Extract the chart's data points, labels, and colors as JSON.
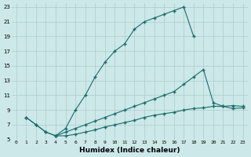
{
  "xlabel": "Humidex (Indice chaleur)",
  "bg_color": "#cce8e8",
  "grid_color": "#aacccc",
  "line_color": "#1a6b6b",
  "xlim": [
    -0.5,
    23.5
  ],
  "ylim": [
    5,
    23.5
  ],
  "yticks": [
    5,
    7,
    9,
    11,
    13,
    15,
    17,
    19,
    21,
    23
  ],
  "xticks": [
    0,
    1,
    2,
    3,
    4,
    5,
    6,
    7,
    8,
    9,
    10,
    11,
    12,
    13,
    14,
    15,
    16,
    17,
    18,
    19,
    20,
    21,
    22,
    23
  ],
  "line1_x": [
    1,
    2,
    3,
    4,
    5,
    6,
    7,
    8,
    9,
    10,
    11,
    12,
    13,
    14,
    15,
    16,
    17,
    18
  ],
  "line1_y": [
    8,
    7,
    6,
    5.5,
    6.5,
    9,
    11,
    13.5,
    15.5,
    17,
    18,
    20,
    21,
    21.5,
    22,
    22.5,
    23,
    19
  ],
  "line2_x": [
    1,
    2,
    3,
    4,
    5,
    6,
    7,
    8,
    9,
    10,
    11,
    12,
    13,
    14,
    15,
    16,
    17,
    18,
    19,
    20,
    21,
    22,
    23
  ],
  "line2_y": [
    8,
    7,
    6,
    5.5,
    5.5,
    5.7,
    6,
    6.3,
    6.7,
    7,
    7.3,
    7.6,
    8,
    8.3,
    8.5,
    8.7,
    9,
    9.2,
    9.3,
    9.5,
    9.5,
    9.6,
    9.5
  ],
  "line3_x": [
    4,
    5,
    6,
    7,
    8,
    9,
    10,
    11,
    12,
    13,
    14,
    15,
    16,
    17,
    18,
    19,
    20,
    21,
    22,
    23
  ],
  "line3_y": [
    5.5,
    6,
    6.5,
    7,
    7.5,
    8,
    8.5,
    9,
    9.5,
    10,
    10.5,
    11,
    11.5,
    12.5,
    13.5,
    14.5,
    10,
    9.5,
    9.2,
    9.3
  ]
}
